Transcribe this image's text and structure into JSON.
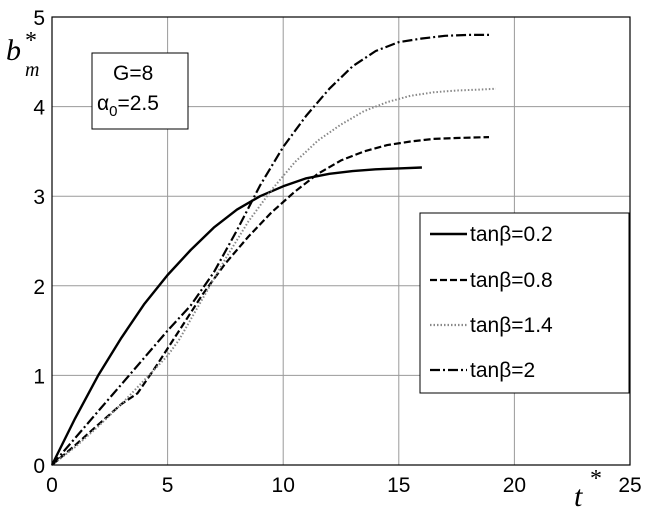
{
  "chart_data": {
    "type": "line",
    "xlabel": {
      "main": "t",
      "sup": "*"
    },
    "ylabel": {
      "main": "b",
      "sub": "m",
      "sup": "*"
    },
    "xlim": [
      0,
      25
    ],
    "ylim": [
      0,
      5
    ],
    "xticks": [
      0,
      5,
      10,
      15,
      20,
      25
    ],
    "yticks": [
      0,
      1,
      2,
      3,
      4,
      5
    ],
    "grid": true,
    "legend_position": "right",
    "annotation": {
      "line1": "G=8",
      "line2_greek": "α",
      "line2_sub": "0",
      "line2_rest": "=2.5"
    },
    "series": [
      {
        "name": "tanβ=0.2",
        "style": "solid",
        "color": "#000000",
        "x": [
          0,
          1,
          2,
          3,
          4,
          5,
          6,
          7,
          8,
          9,
          10,
          11,
          12,
          13,
          14,
          15,
          16
        ],
        "y": [
          0,
          0.52,
          1.0,
          1.42,
          1.8,
          2.12,
          2.4,
          2.65,
          2.85,
          3.0,
          3.11,
          3.2,
          3.25,
          3.28,
          3.3,
          3.31,
          3.32
        ]
      },
      {
        "name": "tanβ=0.8",
        "style": "dashed",
        "color": "#000000",
        "x": [
          0,
          1,
          2,
          3,
          3.7,
          4.5,
          5.5,
          6.5,
          7.5,
          8.5,
          9.5,
          10.5,
          11.5,
          12.5,
          13.5,
          14.5,
          15.5,
          16.5,
          17.5,
          18.9
        ],
        "y": [
          0,
          0.22,
          0.45,
          0.68,
          0.8,
          1.1,
          1.5,
          1.9,
          2.25,
          2.55,
          2.82,
          3.05,
          3.25,
          3.4,
          3.5,
          3.57,
          3.61,
          3.64,
          3.65,
          3.66
        ]
      },
      {
        "name": "tanβ=1.4",
        "style": "dotted",
        "color": "#888888",
        "x": [
          0,
          1,
          2,
          3,
          4,
          5,
          5.5,
          6.5,
          7.5,
          8.5,
          9.5,
          10.5,
          11.5,
          12.5,
          13.5,
          14.5,
          15.5,
          16.5,
          17.5,
          18.5,
          19.2
        ],
        "y": [
          0,
          0.2,
          0.43,
          0.68,
          0.95,
          1.22,
          1.4,
          1.85,
          2.3,
          2.72,
          3.07,
          3.38,
          3.62,
          3.8,
          3.95,
          4.05,
          4.12,
          4.16,
          4.18,
          4.19,
          4.2
        ]
      },
      {
        "name": "tanβ=2",
        "style": "dashdot",
        "color": "#000000",
        "x": [
          0,
          1,
          2,
          3,
          4,
          5,
          6,
          7,
          8,
          9,
          10,
          11,
          12,
          13,
          14,
          15,
          16,
          17,
          18,
          18.9
        ],
        "y": [
          0,
          0.3,
          0.6,
          0.9,
          1.2,
          1.5,
          1.78,
          2.15,
          2.62,
          3.12,
          3.55,
          3.9,
          4.2,
          4.45,
          4.62,
          4.72,
          4.76,
          4.79,
          4.8,
          4.8
        ]
      }
    ]
  }
}
